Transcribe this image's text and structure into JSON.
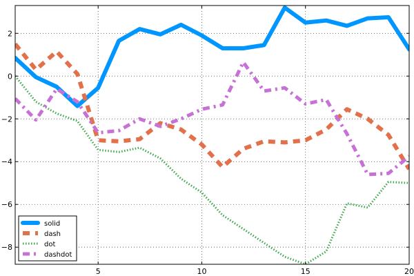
{
  "chart_data": {
    "type": "line",
    "title": "",
    "xlabel": "",
    "ylabel": "",
    "xlim": [
      1,
      20
    ],
    "ylim": [
      -8.8,
      3.3
    ],
    "grid": true,
    "grid_style": "dotted",
    "legend_position": "lower-left",
    "x_ticks": [
      5,
      10,
      15,
      20
    ],
    "x_tick_labels": [
      "5",
      "10",
      "15",
      "20"
    ],
    "y_ticks": [
      2,
      0,
      -2,
      -4,
      -6,
      -8
    ],
    "y_tick_labels": [
      "2",
      "0",
      "−2",
      "−4",
      "−6",
      "−8"
    ],
    "x": [
      1,
      2,
      3,
      4,
      5,
      6,
      7,
      8,
      9,
      10,
      11,
      12,
      13,
      14,
      15,
      16,
      17,
      18,
      19,
      20
    ],
    "series": [
      {
        "name": "solid",
        "style": "solid",
        "color": "#0096ff",
        "values": [
          0.85,
          -0.05,
          -0.5,
          -1.4,
          -0.55,
          1.65,
          2.2,
          1.95,
          2.4,
          1.9,
          1.3,
          1.3,
          1.45,
          3.2,
          2.5,
          2.6,
          2.35,
          2.7,
          2.75,
          1.25
        ]
      },
      {
        "name": "dash",
        "style": "dash",
        "color": "#e2704a",
        "values": [
          1.5,
          0.3,
          1.15,
          0.1,
          -3.0,
          -3.05,
          -2.95,
          -2.2,
          -2.5,
          -3.2,
          -4.25,
          -3.4,
          -3.05,
          -3.1,
          -3.0,
          -2.5,
          -1.55,
          -2.0,
          -2.75,
          -4.35
        ]
      },
      {
        "name": "dot",
        "style": "dot",
        "color": "#3ba84a",
        "values": [
          0.0,
          -1.2,
          -1.75,
          -2.1,
          -3.45,
          -3.55,
          -3.35,
          -3.85,
          -4.8,
          -5.45,
          -6.5,
          -7.15,
          -7.8,
          -8.45,
          -8.8,
          -8.2,
          -5.95,
          -6.15,
          -4.95,
          -5.0
        ]
      },
      {
        "name": "dashdot",
        "style": "dashdot",
        "color": "#c771d6",
        "values": [
          -1.05,
          -2.05,
          -0.6,
          -1.2,
          -2.65,
          -2.55,
          -2.0,
          -2.35,
          -2.0,
          -1.55,
          -1.35,
          0.65,
          -0.7,
          -0.55,
          -1.3,
          -1.1,
          -2.7,
          -4.6,
          -4.55,
          -3.75
        ]
      }
    ]
  }
}
